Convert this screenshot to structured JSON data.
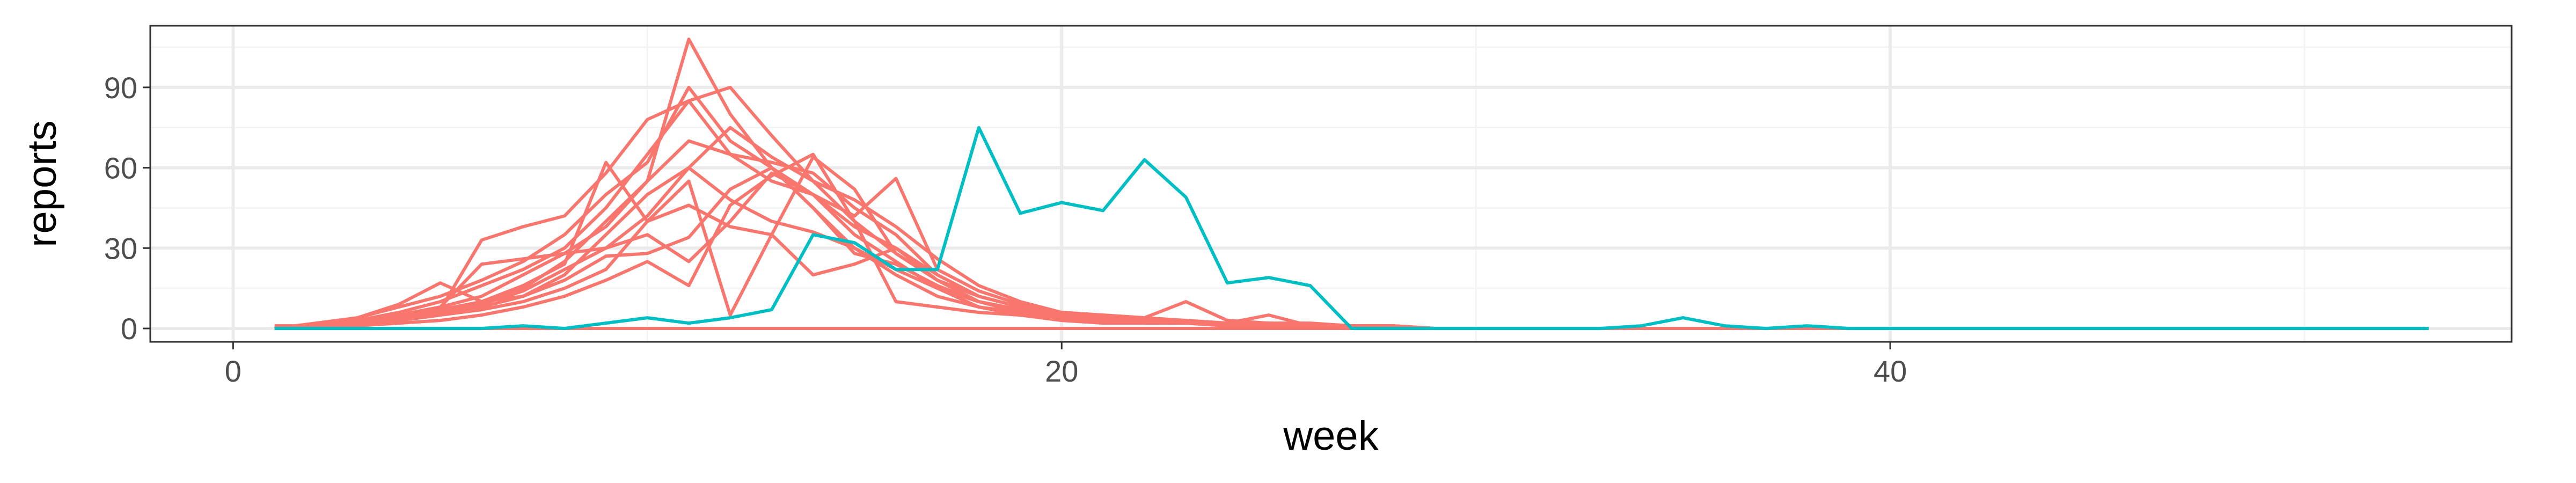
{
  "chart_data": {
    "type": "line",
    "title": "",
    "xlabel": "week",
    "ylabel": "reports",
    "xlim": [
      -2,
      55
    ],
    "ylim": [
      -5,
      113
    ],
    "x_ticks": [
      0,
      20,
      40
    ],
    "y_ticks": [
      0,
      30,
      60,
      90
    ],
    "grid": true,
    "legend": "none",
    "colors": {
      "red": "#F8766D",
      "teal": "#00BFC4",
      "grid_major": "#EBEBEB",
      "grid_minor": "#F4F4F4",
      "panel_border": "#333333"
    },
    "series": [
      {
        "color": "#F8766D",
        "x": [
          1,
          2,
          3,
          4,
          5,
          6,
          7,
          8,
          9,
          10,
          11,
          12,
          13,
          14,
          15,
          16,
          17,
          18,
          19,
          20,
          21,
          22,
          23,
          24,
          25,
          26,
          27,
          28,
          29,
          30,
          31,
          32,
          33,
          34,
          35,
          36,
          37,
          38,
          39,
          40,
          41,
          42,
          43,
          44,
          45,
          46,
          47,
          48,
          49,
          50,
          51,
          52,
          53
        ],
        "y": [
          1,
          1,
          2,
          4,
          6,
          10,
          15,
          25,
          40,
          55,
          108,
          80,
          60,
          45,
          30,
          20,
          12,
          8,
          5,
          3,
          2,
          2,
          2,
          1,
          1,
          1,
          1,
          1,
          0,
          0,
          0,
          0,
          0,
          0,
          0,
          0,
          0,
          0,
          0,
          0,
          0,
          0,
          0,
          0,
          0,
          0,
          0,
          0,
          0,
          0,
          0,
          0,
          0
        ]
      },
      {
        "color": "#F8766D",
        "x": [
          1,
          2,
          3,
          4,
          5,
          6,
          7,
          8,
          9,
          10,
          11,
          12,
          13,
          14,
          15,
          16,
          17,
          18,
          19,
          20,
          21,
          22,
          23,
          24,
          25,
          26,
          27,
          28,
          29,
          30
        ],
        "y": [
          0,
          2,
          4,
          8,
          12,
          18,
          25,
          35,
          50,
          62,
          90,
          70,
          60,
          50,
          35,
          25,
          15,
          10,
          6,
          4,
          3,
          2,
          2,
          1,
          1,
          1,
          0,
          0,
          0,
          0
        ]
      },
      {
        "color": "#F8766D",
        "x": [
          1,
          2,
          3,
          4,
          5,
          6,
          7,
          8,
          9,
          10,
          11,
          12,
          13,
          14,
          15,
          16,
          17,
          18,
          19,
          20,
          21,
          22,
          23,
          24,
          25,
          26,
          27,
          28,
          29,
          30
        ],
        "y": [
          0,
          1,
          3,
          6,
          10,
          16,
          22,
          30,
          45,
          65,
          85,
          90,
          72,
          55,
          40,
          28,
          18,
          10,
          7,
          5,
          4,
          3,
          2,
          2,
          1,
          1,
          1,
          0,
          0,
          0
        ]
      },
      {
        "color": "#F8766D",
        "x": [
          1,
          2,
          3,
          4,
          5,
          6,
          7,
          8,
          9,
          10,
          11,
          12,
          13,
          14,
          15,
          16,
          17,
          18,
          19,
          20,
          21,
          22,
          23,
          24,
          25,
          26,
          27,
          28,
          29,
          30
        ],
        "y": [
          0,
          1,
          2,
          5,
          8,
          12,
          20,
          28,
          38,
          55,
          70,
          65,
          62,
          58,
          45,
          35,
          20,
          12,
          8,
          6,
          5,
          4,
          10,
          3,
          2,
          2,
          1,
          1,
          0,
          0
        ]
      },
      {
        "color": "#F8766D",
        "x": [
          1,
          2,
          3,
          4,
          5,
          6,
          7,
          8,
          9,
          10,
          11,
          12,
          13,
          14,
          15,
          16,
          17,
          18,
          19,
          20,
          21,
          22,
          23,
          24,
          25,
          26,
          27,
          28,
          29,
          30
        ],
        "y": [
          0,
          1,
          4,
          9,
          17,
          10,
          12,
          20,
          35,
          50,
          60,
          48,
          40,
          36,
          30,
          22,
          15,
          8,
          6,
          4,
          3,
          2,
          2,
          1,
          1,
          1,
          0,
          0,
          0,
          0
        ]
      },
      {
        "color": "#F8766D",
        "x": [
          1,
          2,
          3,
          4,
          5,
          6,
          7,
          8,
          9,
          10,
          11,
          12,
          13,
          14,
          15,
          16,
          17,
          18,
          19,
          20,
          21,
          22,
          23,
          24,
          25,
          26,
          27,
          28,
          29,
          30
        ],
        "y": [
          0,
          1,
          2,
          4,
          7,
          33,
          38,
          42,
          58,
          78,
          85,
          65,
          55,
          50,
          38,
          30,
          20,
          12,
          8,
          5,
          4,
          3,
          2,
          2,
          5,
          1,
          1,
          1,
          0,
          0
        ]
      },
      {
        "color": "#F8766D",
        "x": [
          1,
          2,
          3,
          4,
          5,
          6,
          7,
          8,
          9,
          10,
          11,
          12,
          13,
          14,
          15,
          16,
          17,
          18,
          19,
          20,
          21,
          22,
          23,
          24,
          25,
          26,
          27,
          28,
          29,
          30
        ],
        "y": [
          0,
          1,
          2,
          4,
          6,
          9,
          14,
          22,
          30,
          42,
          60,
          75,
          64,
          55,
          48,
          38,
          26,
          16,
          10,
          6,
          4,
          3,
          2,
          2,
          1,
          1,
          1,
          0,
          0,
          0
        ]
      },
      {
        "color": "#F8766D",
        "x": [
          1,
          2,
          3,
          4,
          5,
          6,
          7,
          8,
          9,
          10,
          11,
          12,
          13,
          14,
          15,
          16,
          17,
          18,
          19,
          20,
          21,
          22,
          23,
          24,
          25,
          26,
          27,
          28,
          29,
          30
        ],
        "y": [
          0,
          1,
          3,
          5,
          8,
          24,
          26,
          28,
          30,
          35,
          25,
          40,
          58,
          50,
          42,
          56,
          22,
          14,
          9,
          6,
          5,
          4,
          3,
          2,
          2,
          1,
          1,
          1,
          0,
          0
        ]
      },
      {
        "color": "#F8766D",
        "x": [
          1,
          2,
          3,
          4,
          5,
          6,
          7,
          8,
          9,
          10,
          11,
          12,
          13,
          14,
          15,
          16,
          17,
          18,
          19,
          20,
          21,
          22,
          23,
          24,
          25,
          26,
          27,
          28,
          29,
          30
        ],
        "y": [
          0,
          1,
          2,
          3,
          5,
          8,
          12,
          18,
          27,
          28,
          34,
          52,
          60,
          45,
          28,
          24,
          16,
          10,
          7,
          5,
          4,
          3,
          3,
          2,
          1,
          1,
          1,
          0,
          0,
          0
        ]
      },
      {
        "color": "#F8766D",
        "x": [
          1,
          2,
          3,
          4,
          5,
          6,
          7,
          8,
          9,
          10,
          11,
          12,
          13,
          14,
          15,
          16,
          17,
          18,
          19,
          20,
          21,
          22,
          23,
          24,
          25,
          26,
          27,
          28,
          29,
          30
        ],
        "y": [
          0,
          1,
          2,
          4,
          7,
          10,
          16,
          24,
          62,
          40,
          55,
          5,
          35,
          64,
          52,
          28,
          18,
          12,
          8,
          5,
          4,
          3,
          2,
          2,
          1,
          1,
          1,
          0,
          0,
          0
        ]
      },
      {
        "color": "#F8766D",
        "x": [
          1,
          2,
          3,
          4,
          5,
          6,
          7,
          8,
          9,
          10,
          11,
          12,
          13,
          14,
          15,
          16,
          17,
          18,
          19,
          20,
          21,
          22,
          23,
          24,
          25,
          26,
          27,
          28,
          29,
          30
        ],
        "y": [
          0,
          1,
          2,
          3,
          5,
          7,
          10,
          15,
          22,
          40,
          46,
          38,
          35,
          20,
          24,
          30,
          18,
          12,
          8,
          5,
          4,
          3,
          2,
          2,
          1,
          1,
          1,
          0,
          0,
          0
        ]
      },
      {
        "color": "#F8766D",
        "x": [
          1,
          2,
          3,
          4,
          5,
          6,
          7,
          8,
          9,
          10,
          11,
          12,
          13,
          14,
          15,
          16,
          17,
          18,
          19,
          20,
          21,
          22,
          23,
          24,
          25,
          26,
          27,
          28,
          29,
          30
        ],
        "y": [
          0,
          0,
          1,
          2,
          3,
          5,
          8,
          12,
          18,
          25,
          16,
          46,
          57,
          65,
          40,
          10,
          8,
          6,
          5,
          4,
          3,
          3,
          2,
          2,
          1,
          1,
          1,
          0,
          0,
          0
        ]
      },
      {
        "color": "#F8766D",
        "x": [
          1,
          53
        ],
        "y": [
          0,
          0
        ]
      },
      {
        "color": "#00BFC4",
        "x": [
          1,
          2,
          3,
          4,
          5,
          6,
          7,
          8,
          9,
          10,
          11,
          12,
          13,
          14,
          15,
          16,
          17,
          18,
          19,
          20,
          21,
          22,
          23,
          24,
          25,
          26,
          27,
          28,
          29,
          30,
          31,
          32,
          33,
          34,
          35,
          36,
          37,
          38,
          39,
          40,
          41,
          42,
          43,
          44,
          45,
          46,
          47,
          48,
          49,
          50,
          51,
          52,
          53
        ],
        "y": [
          0,
          0,
          0,
          0,
          0,
          0,
          1,
          0,
          2,
          4,
          2,
          4,
          7,
          35,
          32,
          22,
          22,
          75,
          43,
          47,
          44,
          63,
          49,
          17,
          19,
          16,
          0,
          0,
          0,
          0,
          0,
          0,
          0,
          1,
          4,
          1,
          0,
          1,
          0,
          0,
          0,
          0,
          0,
          0,
          0,
          0,
          0,
          0,
          0,
          0,
          0,
          0,
          0
        ]
      }
    ]
  }
}
